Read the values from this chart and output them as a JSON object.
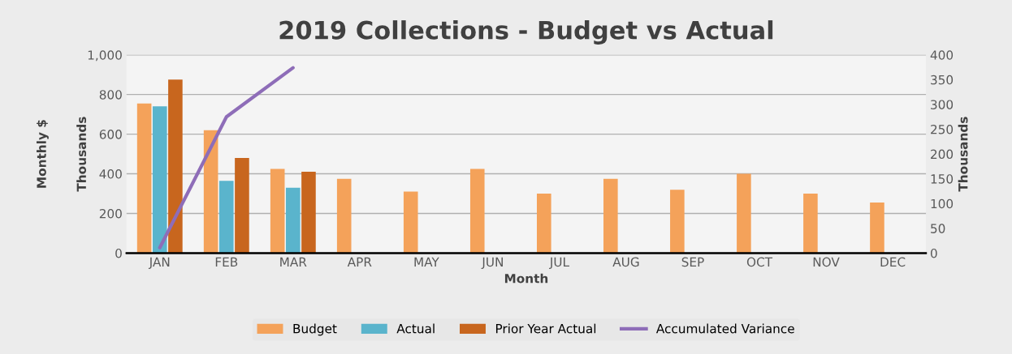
{
  "chart_data": {
    "type": "bar",
    "title": "2019 Collections - Budget vs Actual",
    "xlabel": "Month",
    "ylabel": "Monthly $",
    "y2label": "Thousands",
    "annotations": [
      "Thousands"
    ],
    "categories": [
      "JAN",
      "FEB",
      "MAR",
      "APR",
      "MAY",
      "JUN",
      "JUL",
      "AUG",
      "SEP",
      "OCT",
      "NOV",
      "DEC"
    ],
    "series": [
      {
        "name": "Budget",
        "color": "#f4a25a",
        "values": [
          755,
          620,
          425,
          375,
          310,
          425,
          300,
          375,
          320,
          400,
          300,
          255
        ]
      },
      {
        "name": "Actual",
        "color": "#5ab4cc",
        "values": [
          740,
          365,
          330,
          null,
          null,
          null,
          null,
          null,
          null,
          null,
          null,
          null
        ]
      },
      {
        "name": "Prior Year Actual",
        "color": "#c8661e",
        "values": [
          875,
          480,
          410,
          null,
          null,
          null,
          null,
          null,
          null,
          null,
          null,
          null
        ]
      },
      {
        "name": "Accumulated Variance",
        "type": "line",
        "axis": "y2",
        "color": "#8e6db8",
        "values": [
          11,
          275,
          374,
          null,
          null,
          null,
          null,
          null,
          null,
          null,
          null,
          null
        ]
      }
    ],
    "ylim": [
      0,
      1000
    ],
    "yticks": [
      0,
      200,
      400,
      600,
      800,
      {
        "value": 1000,
        "label": "1,000"
      }
    ],
    "y2lim": [
      0,
      400
    ],
    "y2ticks": [
      0,
      50,
      100,
      150,
      200,
      250,
      300,
      350,
      400
    ],
    "grid": "y",
    "legend": "bottom",
    "marker": "none"
  }
}
